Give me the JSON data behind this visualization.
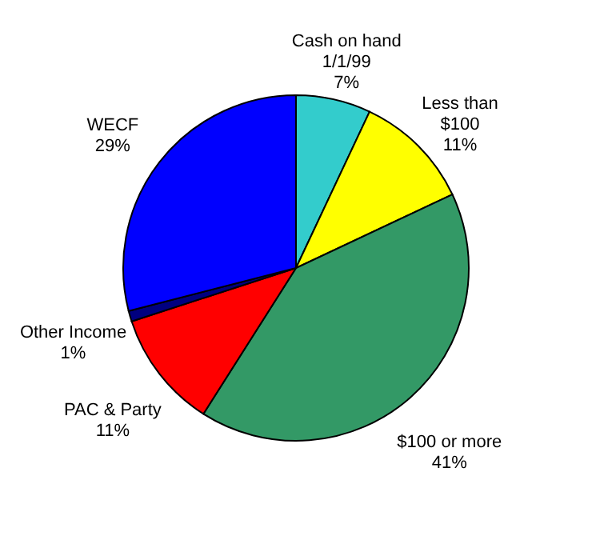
{
  "chart_data": {
    "type": "pie",
    "categories": [
      "Cash on hand 1/1/99",
      "Less than $100",
      "$100 or more",
      "PAC & Party",
      "Other Income",
      "WECF"
    ],
    "values": [
      7,
      11,
      41,
      11,
      1,
      29
    ],
    "colors": [
      "#33cccc",
      "#ffff00",
      "#339966",
      "#ff0000",
      "#000080",
      "#0000ff"
    ],
    "value_labels": [
      "7%",
      "11%",
      "41%",
      "11%",
      "1%",
      "29%"
    ],
    "legend": false
  }
}
